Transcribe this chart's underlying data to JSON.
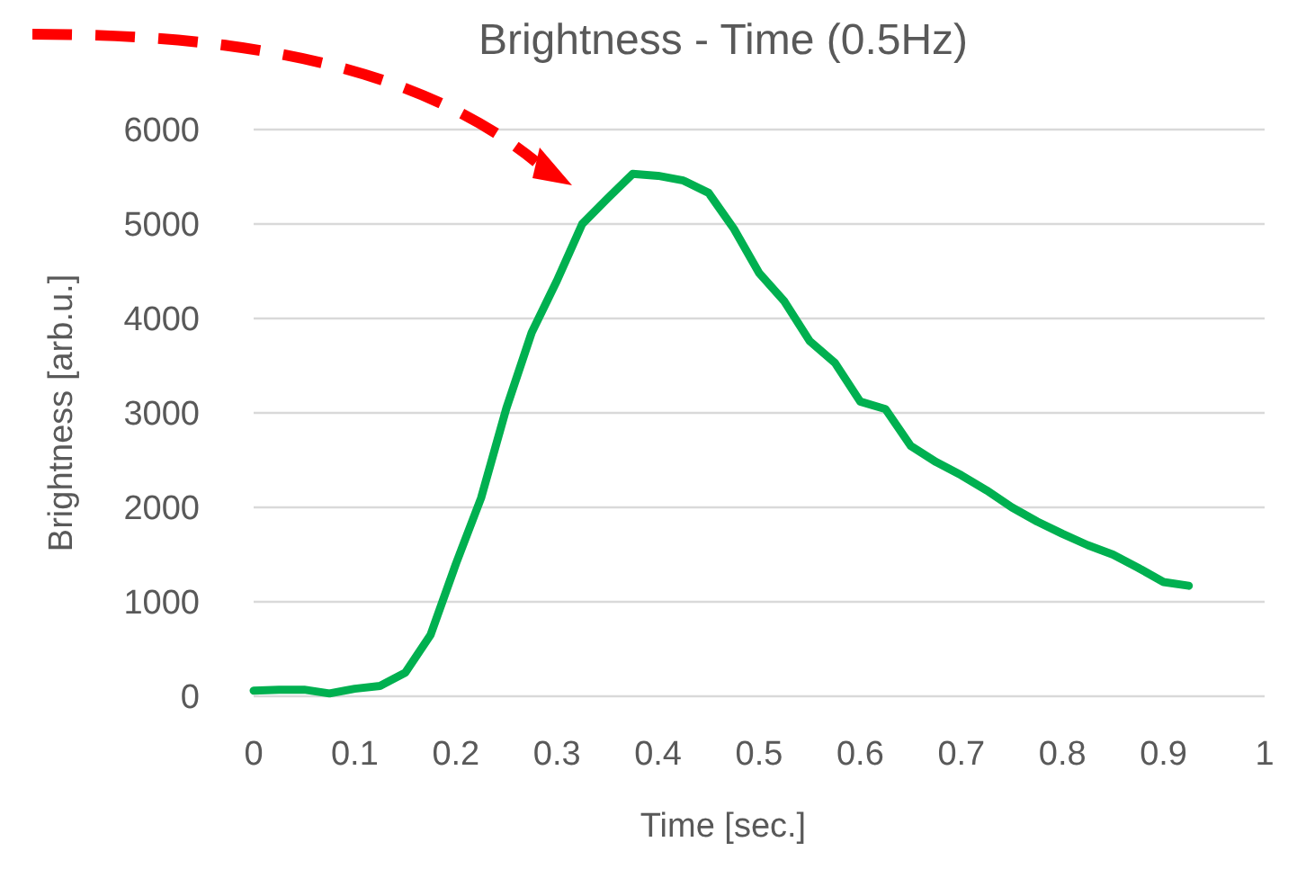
{
  "chart_data": {
    "type": "line",
    "title": "Brightness - Time (0.5Hz)",
    "xlabel": "Time [sec.]",
    "ylabel": "Brightness [arb.u.]",
    "x": [
      0,
      0.025,
      0.05,
      0.075,
      0.1,
      0.125,
      0.15,
      0.175,
      0.2,
      0.225,
      0.25,
      0.275,
      0.3,
      0.325,
      0.35,
      0.375,
      0.4,
      0.425,
      0.45,
      0.475,
      0.5,
      0.525,
      0.55,
      0.575,
      0.6,
      0.625,
      0.65,
      0.675,
      0.7,
      0.725,
      0.75,
      0.775,
      0.8,
      0.825,
      0.85,
      0.875,
      0.9,
      0.925
    ],
    "series": [
      {
        "color": "#00b050",
        "values": [
          60,
          70,
          70,
          30,
          80,
          110,
          250,
          650,
          1400,
          2100,
          3050,
          3850,
          4400,
          5000,
          5270,
          5530,
          5510,
          5460,
          5330,
          4950,
          4480,
          4180,
          3760,
          3530,
          3120,
          3040,
          2650,
          2480,
          2340,
          2180,
          2000,
          1850,
          1720,
          1600,
          1500,
          1360,
          1210,
          1170
        ]
      }
    ],
    "xlim": [
      0,
      1
    ],
    "xticks": [
      0,
      0.1,
      0.2,
      0.3,
      0.4,
      0.5,
      0.6,
      0.7,
      0.8,
      0.9,
      1
    ],
    "ylim": [
      0,
      6000
    ],
    "yticks": [
      0,
      1000,
      2000,
      3000,
      4000,
      5000,
      6000
    ],
    "grid": "y",
    "marker": "none",
    "line_style": "solid"
  }
}
